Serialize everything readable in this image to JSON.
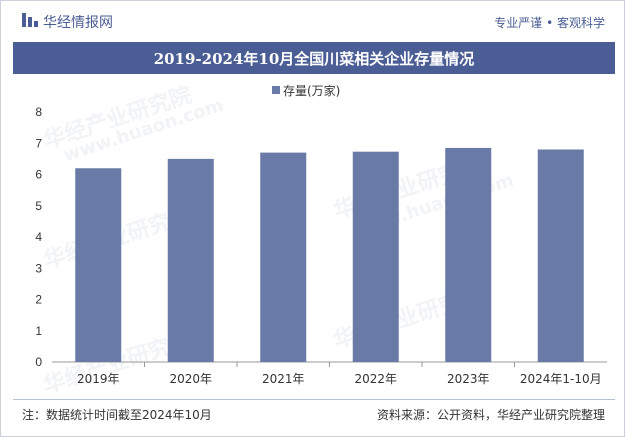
{
  "header": {
    "brand": "华经情报网",
    "slogan": "专业严谨 • 客观科学"
  },
  "watermark": "华经产业研究院",
  "watermark_url": "www.huaon.com",
  "chart_data": {
    "type": "bar",
    "title": "2019-2024年10月全国川菜相关企业存量情况",
    "categories": [
      "2019年",
      "2020年",
      "2021年",
      "2022年",
      "2023年",
      "2024年1-10月"
    ],
    "series": [
      {
        "name": "存量(万家)",
        "values": [
          6.2,
          6.5,
          6.7,
          6.73,
          6.85,
          6.8
        ]
      }
    ],
    "ylim": [
      0,
      8
    ],
    "yticks": [
      0,
      1,
      2,
      3,
      4,
      5,
      6,
      7,
      8
    ],
    "grid": false,
    "legend": "top-center",
    "bar_color": "#6a7aa6"
  },
  "footer": {
    "note": "注：数据统计时间截至2024年10月",
    "source": "资料来源：公开资料，华经产业研究院整理"
  }
}
